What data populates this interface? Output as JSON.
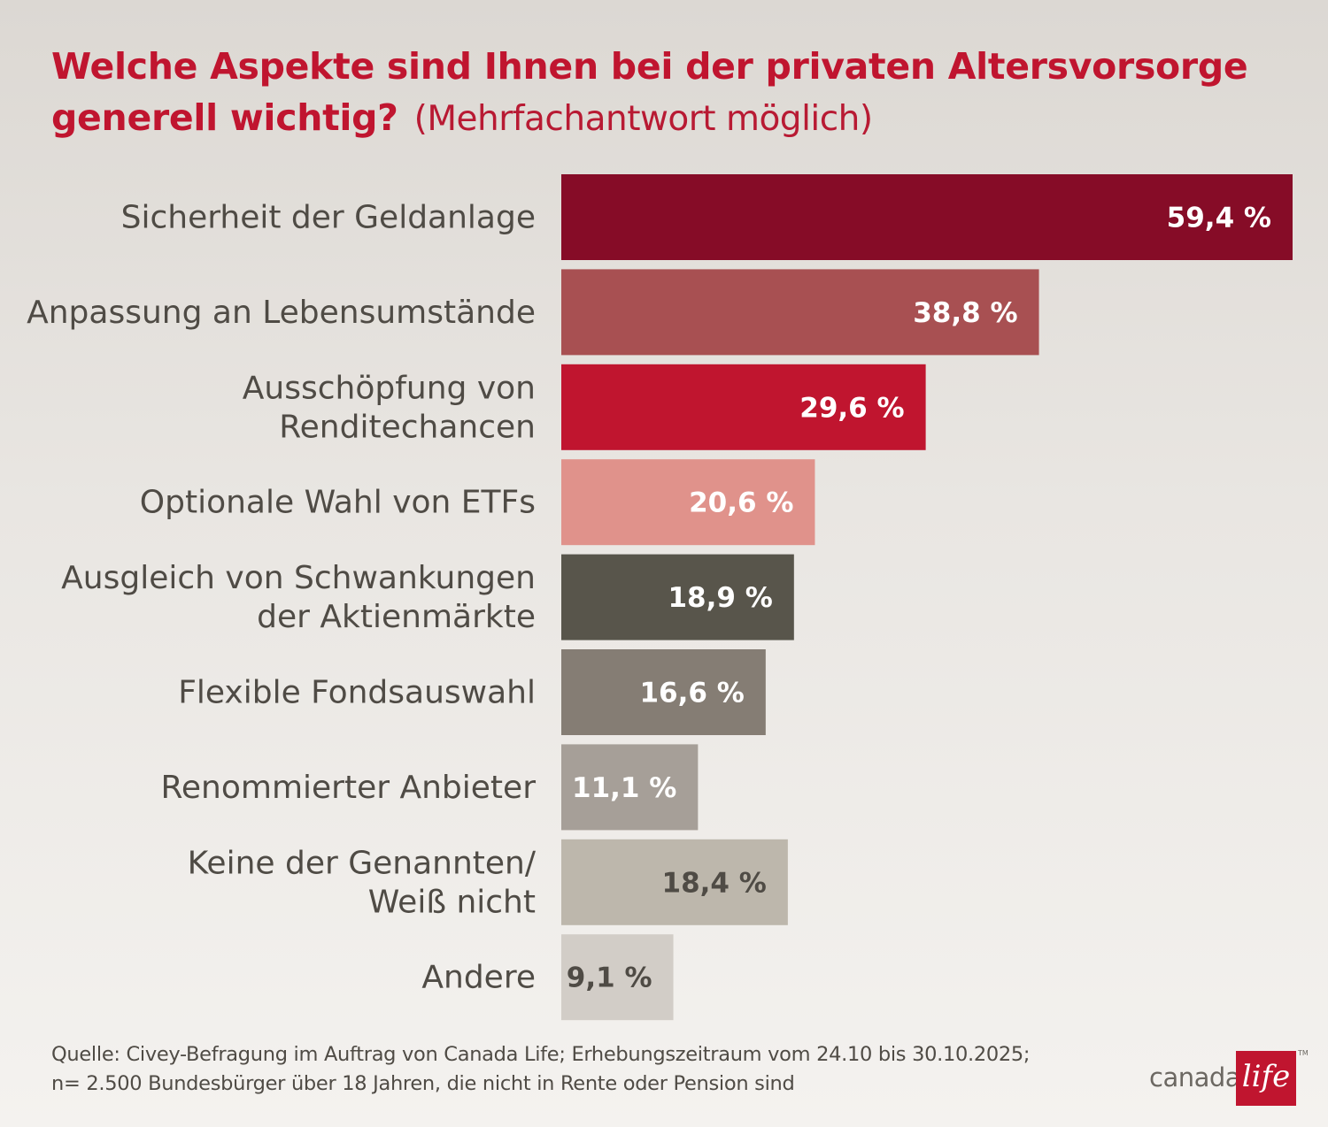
{
  "title": {
    "main": "Welche Aspekte sind Ihnen bei der privaten Altersvorsorge generell wichtig?",
    "sub": "(Mehrfachantwort möglich)"
  },
  "chart_data": {
    "type": "bar",
    "orientation": "horizontal",
    "title": "Welche Aspekte sind Ihnen bei der privaten Altersvorsorge generell wichtig? (Mehrfachantwort möglich)",
    "xlabel": "",
    "ylabel": "",
    "xlim": [
      0,
      59.4
    ],
    "unit": "%",
    "categories": [
      [
        "Sicherheit der Geldanlage"
      ],
      [
        "Anpassung an Lebensumstände"
      ],
      [
        "Ausschöpfung von",
        "Renditechancen"
      ],
      [
        "Optionale Wahl von ETFs"
      ],
      [
        "Ausgleich von Schwankungen",
        "der Aktienmärkte"
      ],
      [
        "Flexible Fondsauswahl"
      ],
      [
        "Renommierter Anbieter"
      ],
      [
        "Keine der Genannten/",
        "Weiß nicht"
      ],
      [
        "Andere"
      ]
    ],
    "values": [
      59.4,
      38.8,
      29.6,
      20.6,
      18.9,
      16.6,
      11.1,
      18.4,
      9.1
    ],
    "value_labels": [
      "59,4 %",
      "38,8 %",
      "29,6 %",
      "20,6 %",
      "18,9 %",
      "16,6 %",
      "11,1 %",
      "18,4 %",
      "9,1 %"
    ],
    "colors": [
      "#860c27",
      "#a85052",
      "#c0152f",
      "#e0928b",
      "#58554b",
      "#857d74",
      "#a69f98",
      "#bdb7ac",
      "#d2cdc7"
    ],
    "label_colors": [
      "#ffffff",
      "#ffffff",
      "#ffffff",
      "#ffffff",
      "#ffffff",
      "#ffffff",
      "#ffffff",
      "#4f4b45",
      "#4f4b45"
    ],
    "grid": false,
    "legend": "none"
  },
  "source": {
    "line1": "Quelle: Civey-Befragung im Auftrag von Canada Life; Erhebungszeitraum vom 24.10 bis 30.10.2025;",
    "line2": "n= 2.500 Bundesbürger über 18 Jahren, die nicht in Rente oder Pension sind"
  },
  "logo": {
    "text": "canada",
    "box_text": "life",
    "tm": "TM"
  }
}
